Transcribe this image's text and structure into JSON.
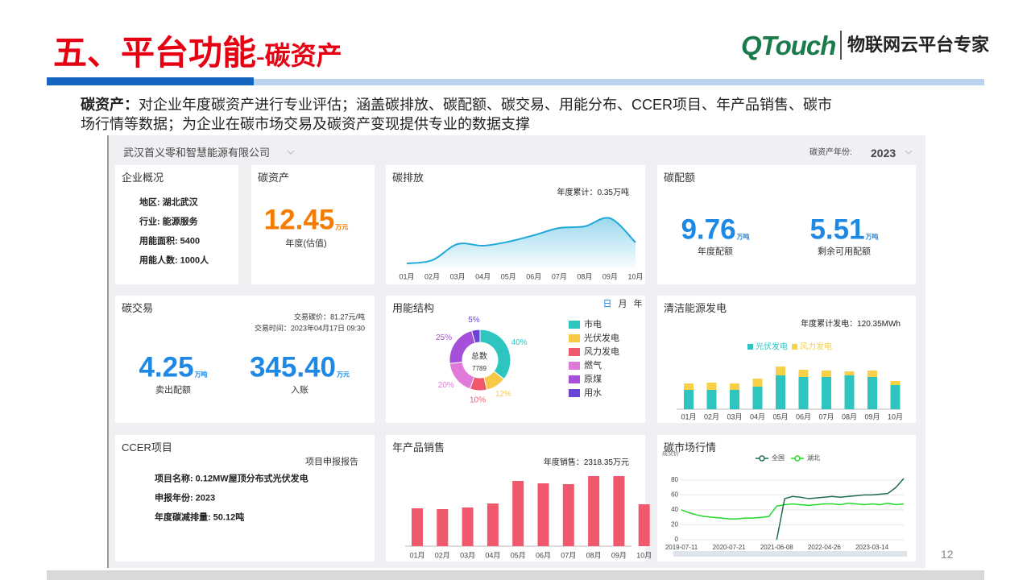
{
  "header": {
    "title": "五、平台功能",
    "subtitle": "-碳资产",
    "brand": "QTouch",
    "tagline": "物联网云平台专家"
  },
  "intro": {
    "label": "碳资产：",
    "lines": [
      "对企业年度碳资产进行专业评估；涵盖碳排放、碳配额、碳交易、用能分布、CCER项目、年产品销售、碳市",
      "场行情等数据；为企业在碳市场交易及碳资产变现提供专业的数据支撑"
    ]
  },
  "dashboard": {
    "company": "武汉首义零和智慧能源有限公司",
    "year_label": "碳资产年份:",
    "year": "2023",
    "overview": {
      "title": "企业概况",
      "items": [
        {
          "label": "地区:",
          "value": "湖北武汉"
        },
        {
          "label": "行业:",
          "value": "能源服务"
        },
        {
          "label": "用能面积:",
          "value": "5400"
        },
        {
          "label": "用能人数:",
          "value": "1000人"
        }
      ]
    },
    "assets": {
      "title": "碳资产",
      "value": "12.45",
      "unit": "万元",
      "caption": "年度(估值)"
    },
    "emission": {
      "title": "碳排放",
      "summary": "年度累计：0.35万吨",
      "chart": {
        "type": "area",
        "categories": [
          "01月",
          "02月",
          "03月",
          "04月",
          "05月",
          "06月",
          "07月",
          "08月",
          "09月",
          "10月"
        ],
        "values": [
          6,
          10,
          30,
          28,
          33,
          41,
          50,
          52,
          62,
          32
        ],
        "ylim": [
          0,
          80
        ],
        "color": "#1fa8d8"
      }
    },
    "quota": {
      "title": "碳配额",
      "items": [
        {
          "value": "9.76",
          "unit": "万吨",
          "caption": "年度配额"
        },
        {
          "value": "5.51",
          "unit": "万吨",
          "caption": "剩余可用配额"
        }
      ]
    },
    "trade": {
      "title": "碳交易",
      "price": "交易碳价：81.27元/吨",
      "time": "交易时间：2023年04月17日 09:30",
      "items": [
        {
          "value": "4.25",
          "unit": "万吨",
          "caption": "卖出配额"
        },
        {
          "value": "345.40",
          "unit": "万元",
          "caption": "入账"
        }
      ]
    },
    "energy": {
      "title": "用能结构",
      "periods": [
        "日",
        "月",
        "年"
      ],
      "chart": {
        "type": "donut",
        "center_label": "总数",
        "center_value": "7789",
        "categories": [
          "市电",
          "光伏发电",
          "风力发电",
          "燃气",
          "原煤",
          "用水"
        ],
        "values": [
          40,
          12,
          10,
          20,
          25,
          5
        ],
        "value_labels": [
          "40%",
          "12%",
          "10%",
          "20%",
          "25%",
          "5%"
        ],
        "colors": [
          "#2ec4c0",
          "#f7c948",
          "#f0596d",
          "#e07ad8",
          "#a64fd8",
          "#6b44d6"
        ]
      }
    },
    "clean": {
      "title": "清洁能源发电",
      "summary": "年度累计发电：120.35MWh",
      "chart": {
        "type": "stacked-bar",
        "categories": [
          "01月",
          "02月",
          "03月",
          "04月",
          "05月",
          "06月",
          "07月",
          "08月",
          "09月",
          "10月"
        ],
        "series": [
          {
            "name": "光伏发电",
            "color": "#2ec4c0",
            "values": [
              24,
              24,
              24,
              28,
              42,
              40,
              40,
              42,
              40,
              30
            ]
          },
          {
            "name": "风力发电",
            "color": "#f7d048",
            "values": [
              8,
              9,
              8,
              10,
              11,
              9,
              8,
              5,
              8,
              5
            ]
          }
        ],
        "ylim": [
          0,
          60
        ]
      }
    },
    "ccer": {
      "title": "CCER项目",
      "link": "项目申报报告",
      "items": [
        {
          "label": "项目名称:",
          "value": "0.12MW屋顶分布式光伏发电"
        },
        {
          "label": "申报年份:",
          "value": "2023"
        },
        {
          "label": "年度碳减排量:",
          "value": "50.12吨"
        }
      ]
    },
    "sales": {
      "title": "年产品销售",
      "summary": "年度销售：2318.35万元",
      "chart": {
        "type": "bar",
        "categories": [
          "01月",
          "02月",
          "03月",
          "04月",
          "05月",
          "06月",
          "07月",
          "08月",
          "09月",
          "10月"
        ],
        "values": [
          47,
          46,
          48,
          53,
          81,
          78,
          77,
          87,
          87,
          52
        ],
        "ylim": [
          0,
          100
        ],
        "color": "#f0596d"
      }
    },
    "market": {
      "title": "碳市场行情",
      "chart": {
        "type": "line",
        "y_label": "成交价",
        "categories": [
          "2019-07-11",
          null,
          null,
          null,
          null,
          null,
          "2020-07-21",
          null,
          null,
          null,
          null,
          null,
          "2021-06-08",
          null,
          null,
          null,
          null,
          null,
          "2022-04-26",
          null,
          null,
          null,
          null,
          null,
          "2023-03-14",
          null,
          null,
          null,
          null
        ],
        "series": [
          {
            "name": "全国",
            "color": "#1e6b52",
            "values": [
              null,
              null,
              null,
              null,
              null,
              null,
              null,
              null,
              null,
              null,
              null,
              null,
              0,
              55,
              58,
              57,
              55,
              56,
              57,
              58,
              57,
              58,
              59,
              60,
              60,
              61,
              62,
              70,
              82
            ]
          },
          {
            "name": "湖北",
            "color": "#22d82a",
            "values": [
              40,
              36,
              33,
              31,
              30,
              29,
              28,
              28,
              29,
              29,
              30,
              31,
              45,
              47,
              48,
              47,
              46,
              47,
              48,
              48,
              47,
              49,
              48,
              47,
              48,
              47,
              49,
              47,
              48
            ]
          }
        ],
        "ylim": [
          0,
          95
        ],
        "yticks": [
          0,
          20,
          40,
          60,
          80
        ]
      }
    }
  },
  "page_number": "12"
}
